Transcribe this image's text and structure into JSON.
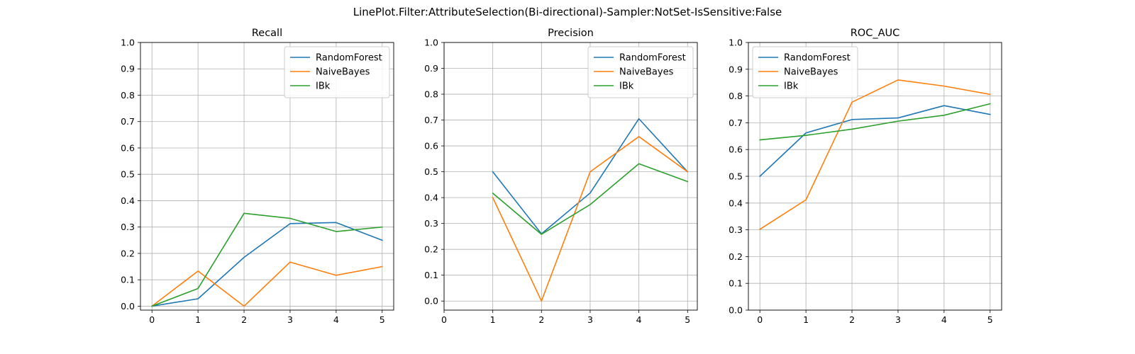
{
  "suptitle": "LinePlot.Filter:AttributeSelection(Bi-directional)-Sampler:NotSet-IsSensitive:False",
  "colors": {
    "RandomForest": "#1f77b4",
    "NaiveBayes": "#ff7f0e",
    "IBk": "#2ca02c"
  },
  "chart_data": [
    {
      "type": "line",
      "title": "Recall",
      "xlim": [
        -0.25,
        5.25
      ],
      "ylim": [
        -0.015,
        1.0
      ],
      "xticks": [
        "0",
        "1",
        "2",
        "3",
        "4",
        "5"
      ],
      "yticks": [
        "0.0",
        "0.1",
        "0.2",
        "0.3",
        "0.4",
        "0.5",
        "0.6",
        "0.7",
        "0.8",
        "0.9",
        "1.0"
      ],
      "grid": true,
      "legend": "upper right",
      "series": [
        {
          "name": "RandomForest",
          "x": [
            0,
            1,
            2,
            3,
            4,
            5
          ],
          "values": [
            0.0,
            0.028,
            0.185,
            0.313,
            0.317,
            0.25
          ]
        },
        {
          "name": "NaiveBayes",
          "x": [
            0,
            1,
            2,
            3,
            4,
            5
          ],
          "values": [
            0.0,
            0.133,
            0.0,
            0.167,
            0.117,
            0.15
          ]
        },
        {
          "name": "IBk",
          "x": [
            0,
            1,
            2,
            3,
            4,
            5
          ],
          "values": [
            0.0,
            0.067,
            0.352,
            0.333,
            0.283,
            0.3
          ]
        }
      ]
    },
    {
      "type": "line",
      "title": "Precision",
      "xlim": [
        0,
        5.2
      ],
      "ylim": [
        -0.035,
        1.0
      ],
      "xticks": [
        "0",
        "1",
        "2",
        "3",
        "4",
        "5"
      ],
      "yticks": [
        "0.0",
        "0.1",
        "0.2",
        "0.3",
        "0.4",
        "0.5",
        "0.6",
        "0.7",
        "0.8",
        "0.9",
        "1.0"
      ],
      "grid": true,
      "legend": "upper right",
      "series": [
        {
          "name": "RandomForest",
          "x": [
            1,
            2,
            3,
            4,
            5
          ],
          "values": [
            0.5,
            0.26,
            0.418,
            0.705,
            0.5
          ]
        },
        {
          "name": "NaiveBayes",
          "x": [
            1,
            2,
            3,
            4,
            5
          ],
          "values": [
            0.4,
            0.0,
            0.5,
            0.636,
            0.5
          ]
        },
        {
          "name": "IBk",
          "x": [
            1,
            2,
            3,
            4,
            5
          ],
          "values": [
            0.417,
            0.258,
            0.373,
            0.531,
            0.462
          ]
        }
      ]
    },
    {
      "type": "line",
      "title": "ROC_AUC",
      "xlim": [
        -0.25,
        5.25
      ],
      "ylim": [
        0.0,
        1.0
      ],
      "xticks": [
        "0",
        "1",
        "2",
        "3",
        "4",
        "5"
      ],
      "yticks": [
        "0.0",
        "0.1",
        "0.2",
        "0.3",
        "0.4",
        "0.5",
        "0.6",
        "0.7",
        "0.8",
        "0.9",
        "1.0"
      ],
      "grid": true,
      "legend": "upper left",
      "series": [
        {
          "name": "RandomForest",
          "x": [
            0,
            1,
            2,
            3,
            4,
            5
          ],
          "values": [
            0.5,
            0.662,
            0.712,
            0.718,
            0.764,
            0.731
          ]
        },
        {
          "name": "NaiveBayes",
          "x": [
            0,
            1,
            2,
            3,
            4,
            5
          ],
          "values": [
            0.302,
            0.412,
            0.777,
            0.86,
            0.837,
            0.806
          ]
        },
        {
          "name": "IBk",
          "x": [
            0,
            1,
            2,
            3,
            4,
            5
          ],
          "values": [
            0.636,
            0.653,
            0.676,
            0.706,
            0.728,
            0.771
          ]
        }
      ]
    }
  ]
}
